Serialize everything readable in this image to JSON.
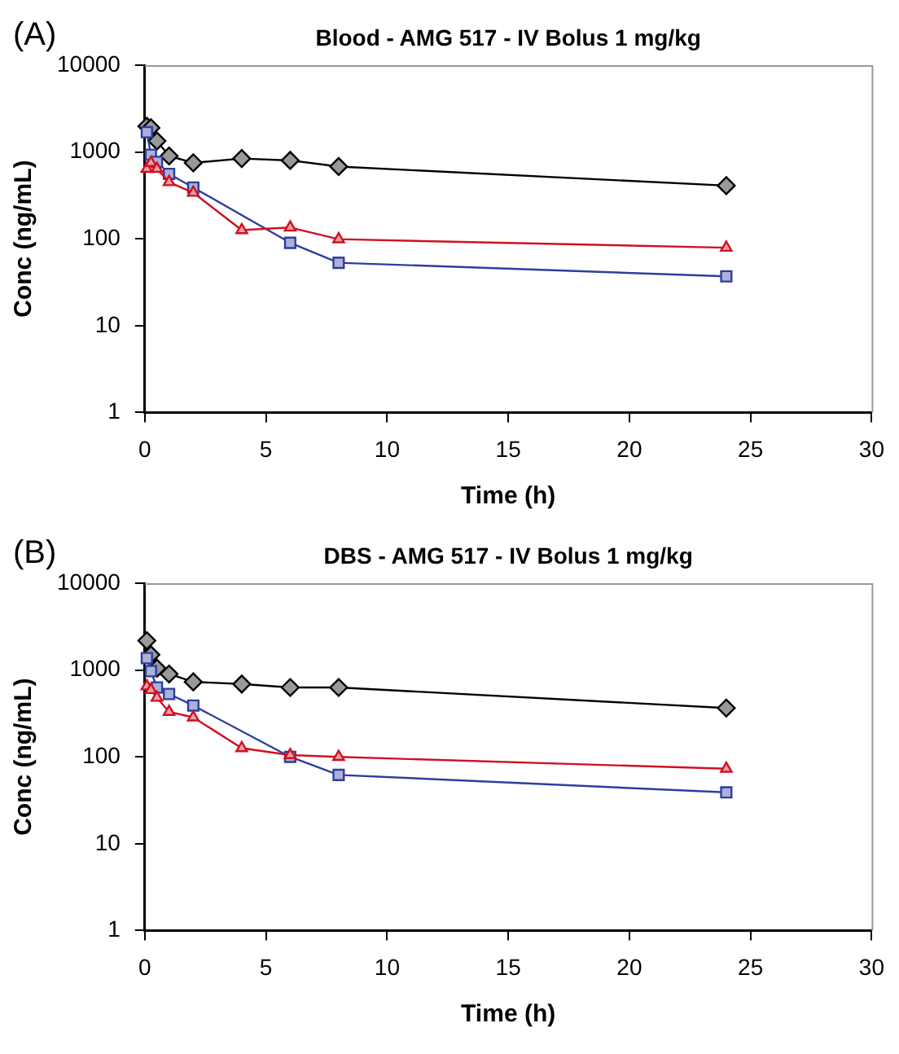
{
  "chart_data": [
    {
      "type": "line",
      "title": "Blood - AMG 517 - IV Bolus 1 mg/kg",
      "xlabel": "Time (h)",
      "ylabel": "Conc (ng/mL)",
      "annotations": [
        "(A)"
      ],
      "log": "y",
      "grid": false,
      "legend": false,
      "xlim": [
        0,
        30
      ],
      "xticks": [
        0,
        5,
        10,
        15,
        20,
        25,
        30
      ],
      "ylim": [
        1,
        10000
      ],
      "yticks": [
        1,
        10,
        100,
        1000,
        10000
      ],
      "series": [
        {
          "color": "#000000",
          "marker": "diamond",
          "x": [
            0.083,
            0.25,
            0.5,
            1,
            2,
            4,
            6,
            8,
            24
          ],
          "values": [
            1980,
            1900,
            1340,
            900,
            750,
            840,
            800,
            680,
            410
          ]
        },
        {
          "color": "#2e3d9e",
          "marker": "square",
          "x": [
            0.083,
            0.25,
            0.5,
            1,
            2,
            6,
            8,
            24
          ],
          "values": [
            1690,
            930,
            770,
            560,
            390,
            90,
            53,
            37
          ]
        },
        {
          "color": "#d01020",
          "marker": "triangle",
          "x": [
            0.083,
            0.25,
            0.5,
            1,
            2,
            4,
            6,
            8,
            24
          ],
          "values": [
            640,
            750,
            640,
            450,
            340,
            126,
            135,
            99,
            79
          ]
        }
      ]
    },
    {
      "type": "line",
      "title": "DBS - AMG 517 - IV Bolus 1 mg/kg",
      "xlabel": "Time (h)",
      "ylabel": "Conc (ng/mL)",
      "annotations": [
        "(B)"
      ],
      "log": "y",
      "grid": false,
      "legend": false,
      "xlim": [
        0,
        30
      ],
      "xticks": [
        0,
        5,
        10,
        15,
        20,
        25,
        30
      ],
      "ylim": [
        1,
        10000
      ],
      "yticks": [
        1,
        10,
        100,
        1000,
        10000
      ],
      "series": [
        {
          "color": "#000000",
          "marker": "diamond",
          "x": [
            0.083,
            0.25,
            0.5,
            1,
            2,
            4,
            6,
            8,
            24
          ],
          "values": [
            2180,
            1500,
            1050,
            900,
            730,
            690,
            630,
            630,
            365
          ]
        },
        {
          "color": "#2e3d9e",
          "marker": "square",
          "x": [
            0.083,
            0.25,
            0.5,
            1,
            2,
            6,
            8,
            24
          ],
          "values": [
            1370,
            970,
            630,
            530,
            390,
            100,
            62,
            39
          ]
        },
        {
          "color": "#d01020",
          "marker": "triangle",
          "x": [
            0.083,
            0.25,
            0.5,
            1,
            2,
            4,
            6,
            8,
            24
          ],
          "values": [
            650,
            590,
            480,
            330,
            285,
            126,
            105,
            100,
            73
          ]
        }
      ]
    }
  ]
}
